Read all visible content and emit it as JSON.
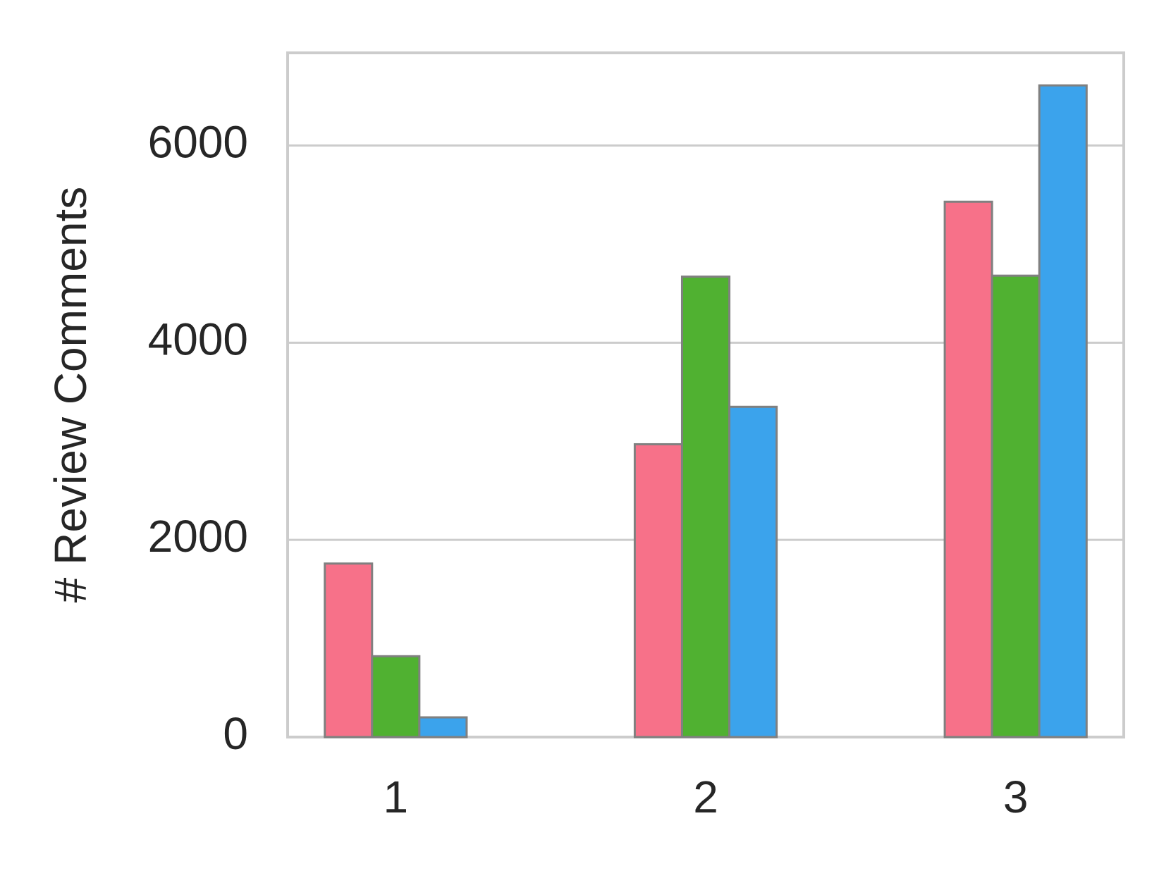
{
  "chart_data": {
    "type": "bar",
    "y_label": "# Review Comments",
    "categories": [
      "1",
      "2",
      "3"
    ],
    "series": [
      {
        "color": "#f77189",
        "values": [
          1760,
          2970,
          5430
        ]
      },
      {
        "color": "#50b131",
        "values": [
          820,
          4670,
          4680
        ]
      },
      {
        "color": "#3ba3ec",
        "values": [
          200,
          3350,
          6610
        ]
      }
    ],
    "ylim": [
      0,
      6940
    ],
    "yticks": [
      0,
      2000,
      4000,
      6000
    ],
    "grid": true
  }
}
